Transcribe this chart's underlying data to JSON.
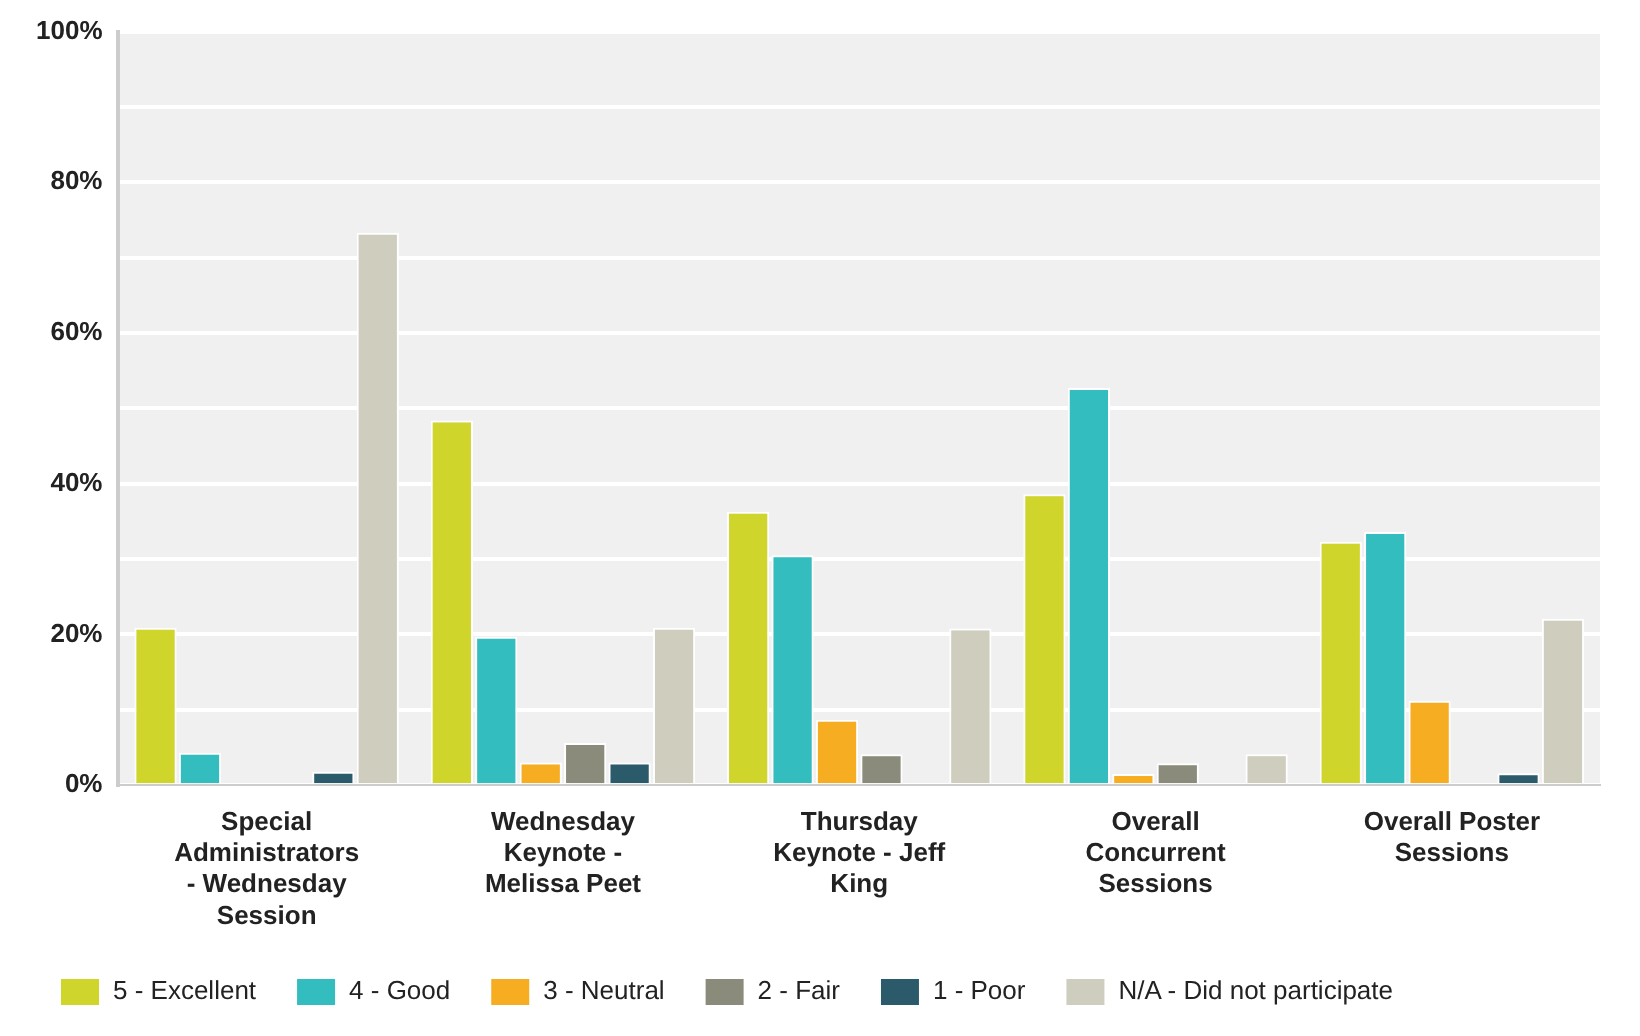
{
  "chart_data": {
    "type": "bar",
    "categories": [
      "Special Administrators - Wednesday Session",
      "Wednesday Keynote - Melissa Peet",
      "Thursday Keynote - Jeff King",
      "Overall Concurrent Sessions",
      "Overall Poster Sessions"
    ],
    "series": [
      {
        "name": "5 - Excellent",
        "color": "#cfd52a",
        "values": [
          20.9,
          48.4,
          36.3,
          38.6,
          32.3
        ]
      },
      {
        "name": "4 - Good",
        "color": "#33bdbf",
        "values": [
          4.3,
          19.7,
          30.5,
          52.7,
          33.6
        ]
      },
      {
        "name": "3 - Neutral",
        "color": "#f7ad21",
        "values": [
          0,
          3.0,
          8.7,
          1.5,
          11.2
        ]
      },
      {
        "name": "2 - Fair",
        "color": "#8a8b7a",
        "values": [
          0,
          5.6,
          4.1,
          2.9,
          0
        ]
      },
      {
        "name": "1 - Poor",
        "color": "#2b5b6b",
        "values": [
          1.8,
          3.0,
          0,
          0,
          1.6
        ]
      },
      {
        "name": "N/A - Did not participate",
        "color": "#cfcdbe",
        "values": [
          73.3,
          20.9,
          20.8,
          4.1,
          22.1
        ]
      }
    ],
    "ylim": [
      0,
      100
    ],
    "yticks": [
      {
        "value": 0,
        "label": "0%"
      },
      {
        "value": 10,
        "label": null
      },
      {
        "value": 20,
        "label": "20%"
      },
      {
        "value": 30,
        "label": null
      },
      {
        "value": 40,
        "label": "40%"
      },
      {
        "value": 50,
        "label": null
      },
      {
        "value": 60,
        "label": "60%"
      },
      {
        "value": 70,
        "label": null
      },
      {
        "value": 80,
        "label": "80%"
      },
      {
        "value": 90,
        "label": null
      },
      {
        "value": 100,
        "label": "100%"
      }
    ],
    "grid": "y",
    "legend": "bottom"
  }
}
